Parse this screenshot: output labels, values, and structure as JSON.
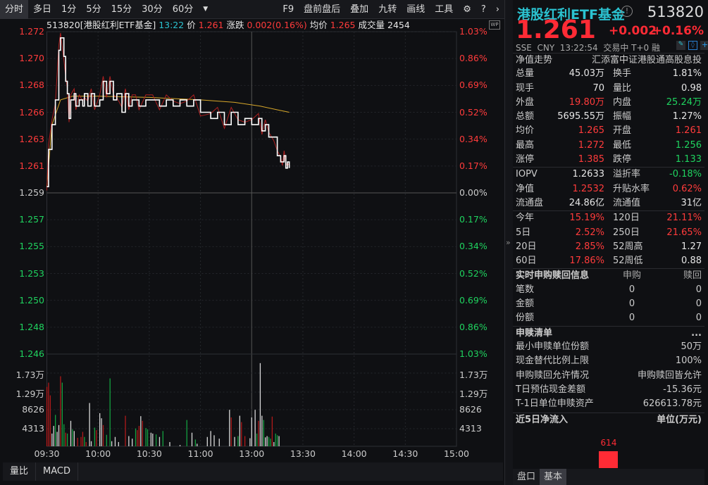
{
  "toolbar": {
    "tabs": [
      "分时",
      "多日",
      "1分",
      "5分",
      "15分",
      "30分",
      "60分"
    ],
    "active": 0,
    "more_icon": "triangle-down-icon",
    "right": [
      "F9",
      "盘前盘后",
      "叠加",
      "九转",
      "画线",
      "工具"
    ],
    "icons": [
      "gear-icon",
      "help-icon",
      "chevron-right-icon"
    ]
  },
  "info": {
    "code_name": "513820[港股红利ETF基金]",
    "time": "13:22",
    "price_label": "价",
    "price": "1.261",
    "change_label": "涨跌",
    "change": "0.002(0.16%)",
    "avg_label": "均价",
    "avg": "1.265",
    "vol_label": "成交量",
    "vol": "2454",
    "wp": "WP"
  },
  "axes": {
    "price_ticks": [
      "1.272",
      "1.270",
      "1.268",
      "1.266",
      "1.263",
      "1.261",
      "1.259",
      "1.257",
      "1.255",
      "1.253",
      "1.250",
      "1.248",
      "1.246"
    ],
    "pct_ticks": [
      "1.03%",
      "0.86%",
      "0.69%",
      "0.52%",
      "0.34%",
      "0.17%",
      "0.00%",
      "0.17%",
      "0.34%",
      "0.52%",
      "0.69%",
      "0.86%",
      "1.03%"
    ],
    "vol_ticks": [
      "1.73万",
      "1.29万",
      "8626",
      "4313"
    ],
    "time_ticks": [
      "09:30",
      "10:00",
      "10:30",
      "11:00",
      "13:00",
      "13:30",
      "14:00",
      "14:30",
      "15:00"
    ]
  },
  "chart_data": {
    "type": "line",
    "prev_close": 1.259,
    "ylim": [
      1.246,
      1.272
    ],
    "price": [
      [
        0,
        1.2595
      ],
      [
        1,
        1.2625
      ],
      [
        3,
        1.2645
      ],
      [
        5,
        1.2665
      ],
      [
        7,
        1.2705
      ],
      [
        8,
        1.2715
      ],
      [
        10,
        1.27
      ],
      [
        11,
        1.268
      ],
      [
        12,
        1.267
      ],
      [
        13,
        1.265
      ],
      [
        14,
        1.2665
      ],
      [
        16,
        1.267
      ],
      [
        17,
        1.266
      ],
      [
        19,
        1.2665
      ],
      [
        21,
        1.266
      ],
      [
        22,
        1.267
      ],
      [
        24,
        1.266
      ],
      [
        26,
        1.267
      ],
      [
        28,
        1.266
      ],
      [
        31,
        1.2665
      ],
      [
        33,
        1.268
      ],
      [
        35,
        1.267
      ],
      [
        37,
        1.268
      ],
      [
        39,
        1.2665
      ],
      [
        41,
        1.267
      ],
      [
        44,
        1.2655
      ],
      [
        46,
        1.267
      ],
      [
        48,
        1.266
      ],
      [
        50,
        1.2665
      ],
      [
        52,
        1.2665
      ],
      [
        54,
        1.266
      ],
      [
        58,
        1.2665
      ],
      [
        62,
        1.2665
      ],
      [
        66,
        1.266
      ],
      [
        70,
        1.2665
      ],
      [
        74,
        1.266
      ],
      [
        78,
        1.2665
      ],
      [
        82,
        1.266
      ],
      [
        86,
        1.2665
      ],
      [
        90,
        1.2655
      ],
      [
        96,
        1.265
      ],
      [
        100,
        1.2655
      ],
      [
        104,
        1.2645
      ],
      [
        108,
        1.2655
      ],
      [
        112,
        1.2645
      ],
      [
        116,
        1.265
      ],
      [
        120,
        1.2645
      ],
      [
        124,
        1.265
      ],
      [
        126,
        1.264
      ],
      [
        128,
        1.2645
      ],
      [
        130,
        1.2635
      ],
      [
        133,
        1.2635
      ],
      [
        135,
        1.262
      ],
      [
        137,
        1.2615
      ],
      [
        138,
        1.2615
      ],
      [
        139,
        1.262
      ],
      [
        140,
        1.261
      ],
      [
        141,
        1.2615
      ],
      [
        142,
        1.261
      ]
    ],
    "avg": [
      [
        0,
        1.2595
      ],
      [
        3,
        1.2645
      ],
      [
        8,
        1.2665
      ],
      [
        15,
        1.2668
      ],
      [
        30,
        1.2668
      ],
      [
        60,
        1.2667
      ],
      [
        90,
        1.2665
      ],
      [
        110,
        1.2663
      ],
      [
        125,
        1.266
      ],
      [
        135,
        1.2657
      ],
      [
        142,
        1.2655
      ]
    ],
    "vol_max_tick": 17252,
    "volume": [
      [
        0,
        14000,
        "r"
      ],
      [
        1,
        15000,
        "r"
      ],
      [
        2,
        12000,
        "r"
      ],
      [
        3,
        3000,
        "w"
      ],
      [
        4,
        4800,
        "w"
      ],
      [
        5,
        7400,
        "g"
      ],
      [
        6,
        3400,
        "w"
      ],
      [
        7,
        5000,
        "w"
      ],
      [
        8,
        16500,
        "r"
      ],
      [
        9,
        15000,
        "g"
      ],
      [
        10,
        5200,
        "g"
      ],
      [
        11,
        3200,
        "r"
      ],
      [
        12,
        3000,
        "g"
      ],
      [
        14,
        6000,
        "w"
      ],
      [
        15,
        4000,
        "g"
      ],
      [
        16,
        3600,
        "w"
      ],
      [
        18,
        2000,
        "r"
      ],
      [
        20,
        2200,
        "r"
      ],
      [
        21,
        3400,
        "r"
      ],
      [
        22,
        2200,
        "g"
      ],
      [
        23,
        1000,
        "r"
      ],
      [
        25,
        10200,
        "w"
      ],
      [
        26,
        1200,
        "w"
      ],
      [
        28,
        4400,
        "g"
      ],
      [
        29,
        3800,
        "r"
      ],
      [
        31,
        7800,
        "w"
      ],
      [
        32,
        6600,
        "w"
      ],
      [
        33,
        5000,
        "r"
      ],
      [
        35,
        2700,
        "g"
      ],
      [
        37,
        16000,
        "g"
      ],
      [
        38,
        1200,
        "w"
      ],
      [
        40,
        2200,
        "w"
      ],
      [
        42,
        1000,
        "w"
      ],
      [
        46,
        7200,
        "r"
      ],
      [
        48,
        2400,
        "w"
      ],
      [
        50,
        1800,
        "w"
      ],
      [
        52,
        4200,
        "g"
      ],
      [
        53,
        3800,
        "r"
      ],
      [
        54,
        4800,
        "r"
      ],
      [
        55,
        7100,
        "w"
      ],
      [
        56,
        6000,
        "r"
      ],
      [
        58,
        4300,
        "g"
      ],
      [
        59,
        4000,
        "g"
      ],
      [
        61,
        3200,
        "w"
      ],
      [
        62,
        3000,
        "w"
      ],
      [
        64,
        2800,
        "g"
      ],
      [
        66,
        2200,
        "w"
      ],
      [
        68,
        3600,
        "g"
      ],
      [
        72,
        1000,
        "w"
      ],
      [
        78,
        300,
        "w"
      ],
      [
        82,
        6200,
        "g"
      ],
      [
        85,
        3200,
        "w"
      ],
      [
        87,
        1600,
        "g"
      ],
      [
        88,
        600,
        "w"
      ],
      [
        94,
        2200,
        "w"
      ],
      [
        96,
        3600,
        "w"
      ],
      [
        98,
        2600,
        "w"
      ],
      [
        101,
        1800,
        "w"
      ],
      [
        107,
        8600,
        "w"
      ],
      [
        108,
        6800,
        "r"
      ],
      [
        110,
        2200,
        "w"
      ],
      [
        112,
        2400,
        "g"
      ],
      [
        113,
        7200,
        "w"
      ],
      [
        114,
        5700,
        "r"
      ],
      [
        116,
        2400,
        "r"
      ],
      [
        119,
        1900,
        "w"
      ],
      [
        120,
        6800,
        "w"
      ],
      [
        122,
        8600,
        "w"
      ],
      [
        123,
        3000,
        "g"
      ],
      [
        124,
        6000,
        "r"
      ],
      [
        125,
        19600,
        "w"
      ],
      [
        126,
        7200,
        "w"
      ],
      [
        127,
        6200,
        "g"
      ],
      [
        128,
        2100,
        "w"
      ],
      [
        129,
        2400,
        "w"
      ],
      [
        130,
        2200,
        "g"
      ],
      [
        131,
        1800,
        "g"
      ],
      [
        132,
        7000,
        "r"
      ],
      [
        133,
        1000,
        "w"
      ],
      [
        134,
        3000,
        "g"
      ],
      [
        135,
        2600,
        "g"
      ],
      [
        136,
        2400,
        "w"
      ]
    ]
  },
  "bottom_tabs": [
    "量比",
    "MACD"
  ],
  "side": {
    "name": "港股红利ETF基金",
    "code": "513820",
    "price": "1.261",
    "change": "+0.002",
    "change_pct": "+0.16%",
    "exchange": "SSE",
    "currency": "CNY",
    "time": "13:22:54",
    "status": "交易中 T+0",
    "margin": "融",
    "nav_trend": "净值走势",
    "index_name": "汇添富中证港股通高股息投",
    "stats": [
      [
        "总量",
        "45.03万",
        "w",
        "换手",
        "1.81%",
        "w"
      ],
      [
        "现手",
        "70",
        "w",
        "量比",
        "0.98",
        "w"
      ],
      [
        "外盘",
        "19.80万",
        "r",
        "内盘",
        "25.24万",
        "g"
      ],
      [
        "总额",
        "5695.55万",
        "w",
        "振幅",
        "1.27%",
        "w"
      ],
      [
        "均价",
        "1.265",
        "r",
        "开盘",
        "1.261",
        "r"
      ],
      [
        "最高",
        "1.272",
        "r",
        "最低",
        "1.256",
        "g"
      ],
      [
        "涨停",
        "1.385",
        "r",
        "跌停",
        "1.133",
        "g"
      ]
    ],
    "stats2": [
      [
        "IOPV",
        "1.2633",
        "w",
        "溢折率",
        "-0.18%",
        "g"
      ],
      [
        "净值",
        "1.2532",
        "r",
        "升贴水率",
        "0.62%",
        "r"
      ],
      [
        "流通盘",
        "24.86亿",
        "w",
        "流通值",
        "31亿",
        "w"
      ]
    ],
    "stats3": [
      [
        "今年",
        "15.19%",
        "r",
        "120日",
        "21.11%",
        "r"
      ],
      [
        "5日",
        "2.52%",
        "r",
        "250日",
        "21.65%",
        "r"
      ],
      [
        "20日",
        "2.85%",
        "r",
        "52周高",
        "1.27",
        "w"
      ],
      [
        "60日",
        "17.86%",
        "r",
        "52周低",
        "0.88",
        "w"
      ]
    ],
    "realtime": {
      "title": "实时申购赎回信息",
      "cols": [
        "申购",
        "赎回"
      ],
      "rows": [
        [
          "笔数",
          "0",
          "0"
        ],
        [
          "金额",
          "0",
          "0"
        ],
        [
          "份额",
          "0",
          "0"
        ]
      ]
    },
    "redeem": {
      "title": "申赎清单",
      "more": "...",
      "rows": [
        [
          "最小申赎单位份额",
          "50万"
        ],
        [
          "现金替代比例上限",
          "100%"
        ],
        [
          "申购赎回允许情况",
          "申购赎回皆允许"
        ],
        [
          "T日预估现金差额",
          "-15.36元"
        ],
        [
          "T-1日单位申赎资产",
          "626613.78元"
        ]
      ]
    },
    "flow": {
      "title": "近5日净流入",
      "unit": "单位(万元)",
      "value": "614"
    },
    "tabs": [
      "盘口",
      "基本"
    ],
    "active_tab": 1
  }
}
